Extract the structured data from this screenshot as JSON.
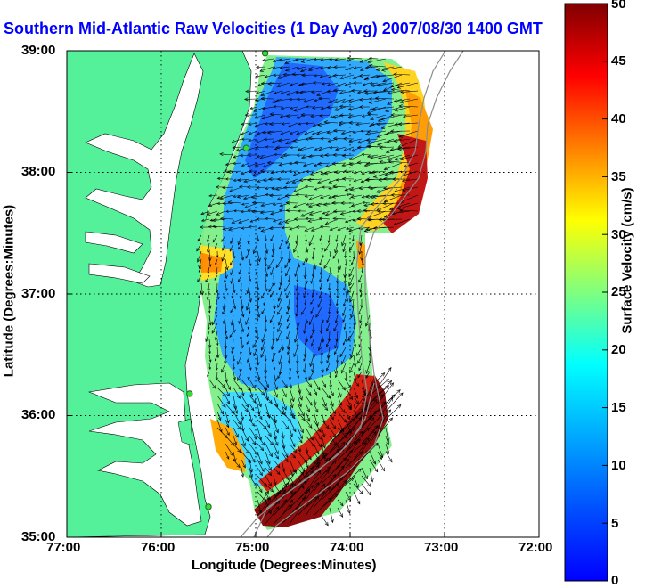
{
  "title": "Southern Mid-Atlantic Raw Velocities (1 Day Avg) 2007/08/30 1400 GMT",
  "xlabel": "Longitude (Degrees:Minutes)",
  "ylabel": "Latitude (Degrees:Minutes)",
  "colorbar": {
    "label": "Surface Velocity (cm/s)",
    "min": 0,
    "max": 50,
    "ticks": [
      "0",
      "5",
      "10",
      "15",
      "20",
      "25",
      "30",
      "35",
      "40",
      "45",
      "50"
    ],
    "colormap": "jet"
  },
  "x_ticks": [
    "77:00",
    "76:00",
    "75:00",
    "74:00",
    "73:00",
    "72:00"
  ],
  "y_ticks": [
    "39:00",
    "38:00",
    "37:00",
    "36:00",
    "35:00"
  ],
  "extent": {
    "lon_min": -77,
    "lon_max": -72,
    "lat_min": 35,
    "lat_max": 39
  },
  "colors": {
    "land": "#55f09a",
    "title": "#0000ff",
    "grid": "#000000",
    "vector": "#000000"
  },
  "grid": true,
  "stations": [
    {
      "name": "station",
      "lon": -74.9,
      "lat": 38.98
    },
    {
      "name": "station",
      "lon": -75.1,
      "lat": 38.2
    },
    {
      "name": "station",
      "lon": -75.7,
      "lat": 36.18
    },
    {
      "name": "station",
      "lon": -75.5,
      "lat": 35.25
    }
  ]
}
